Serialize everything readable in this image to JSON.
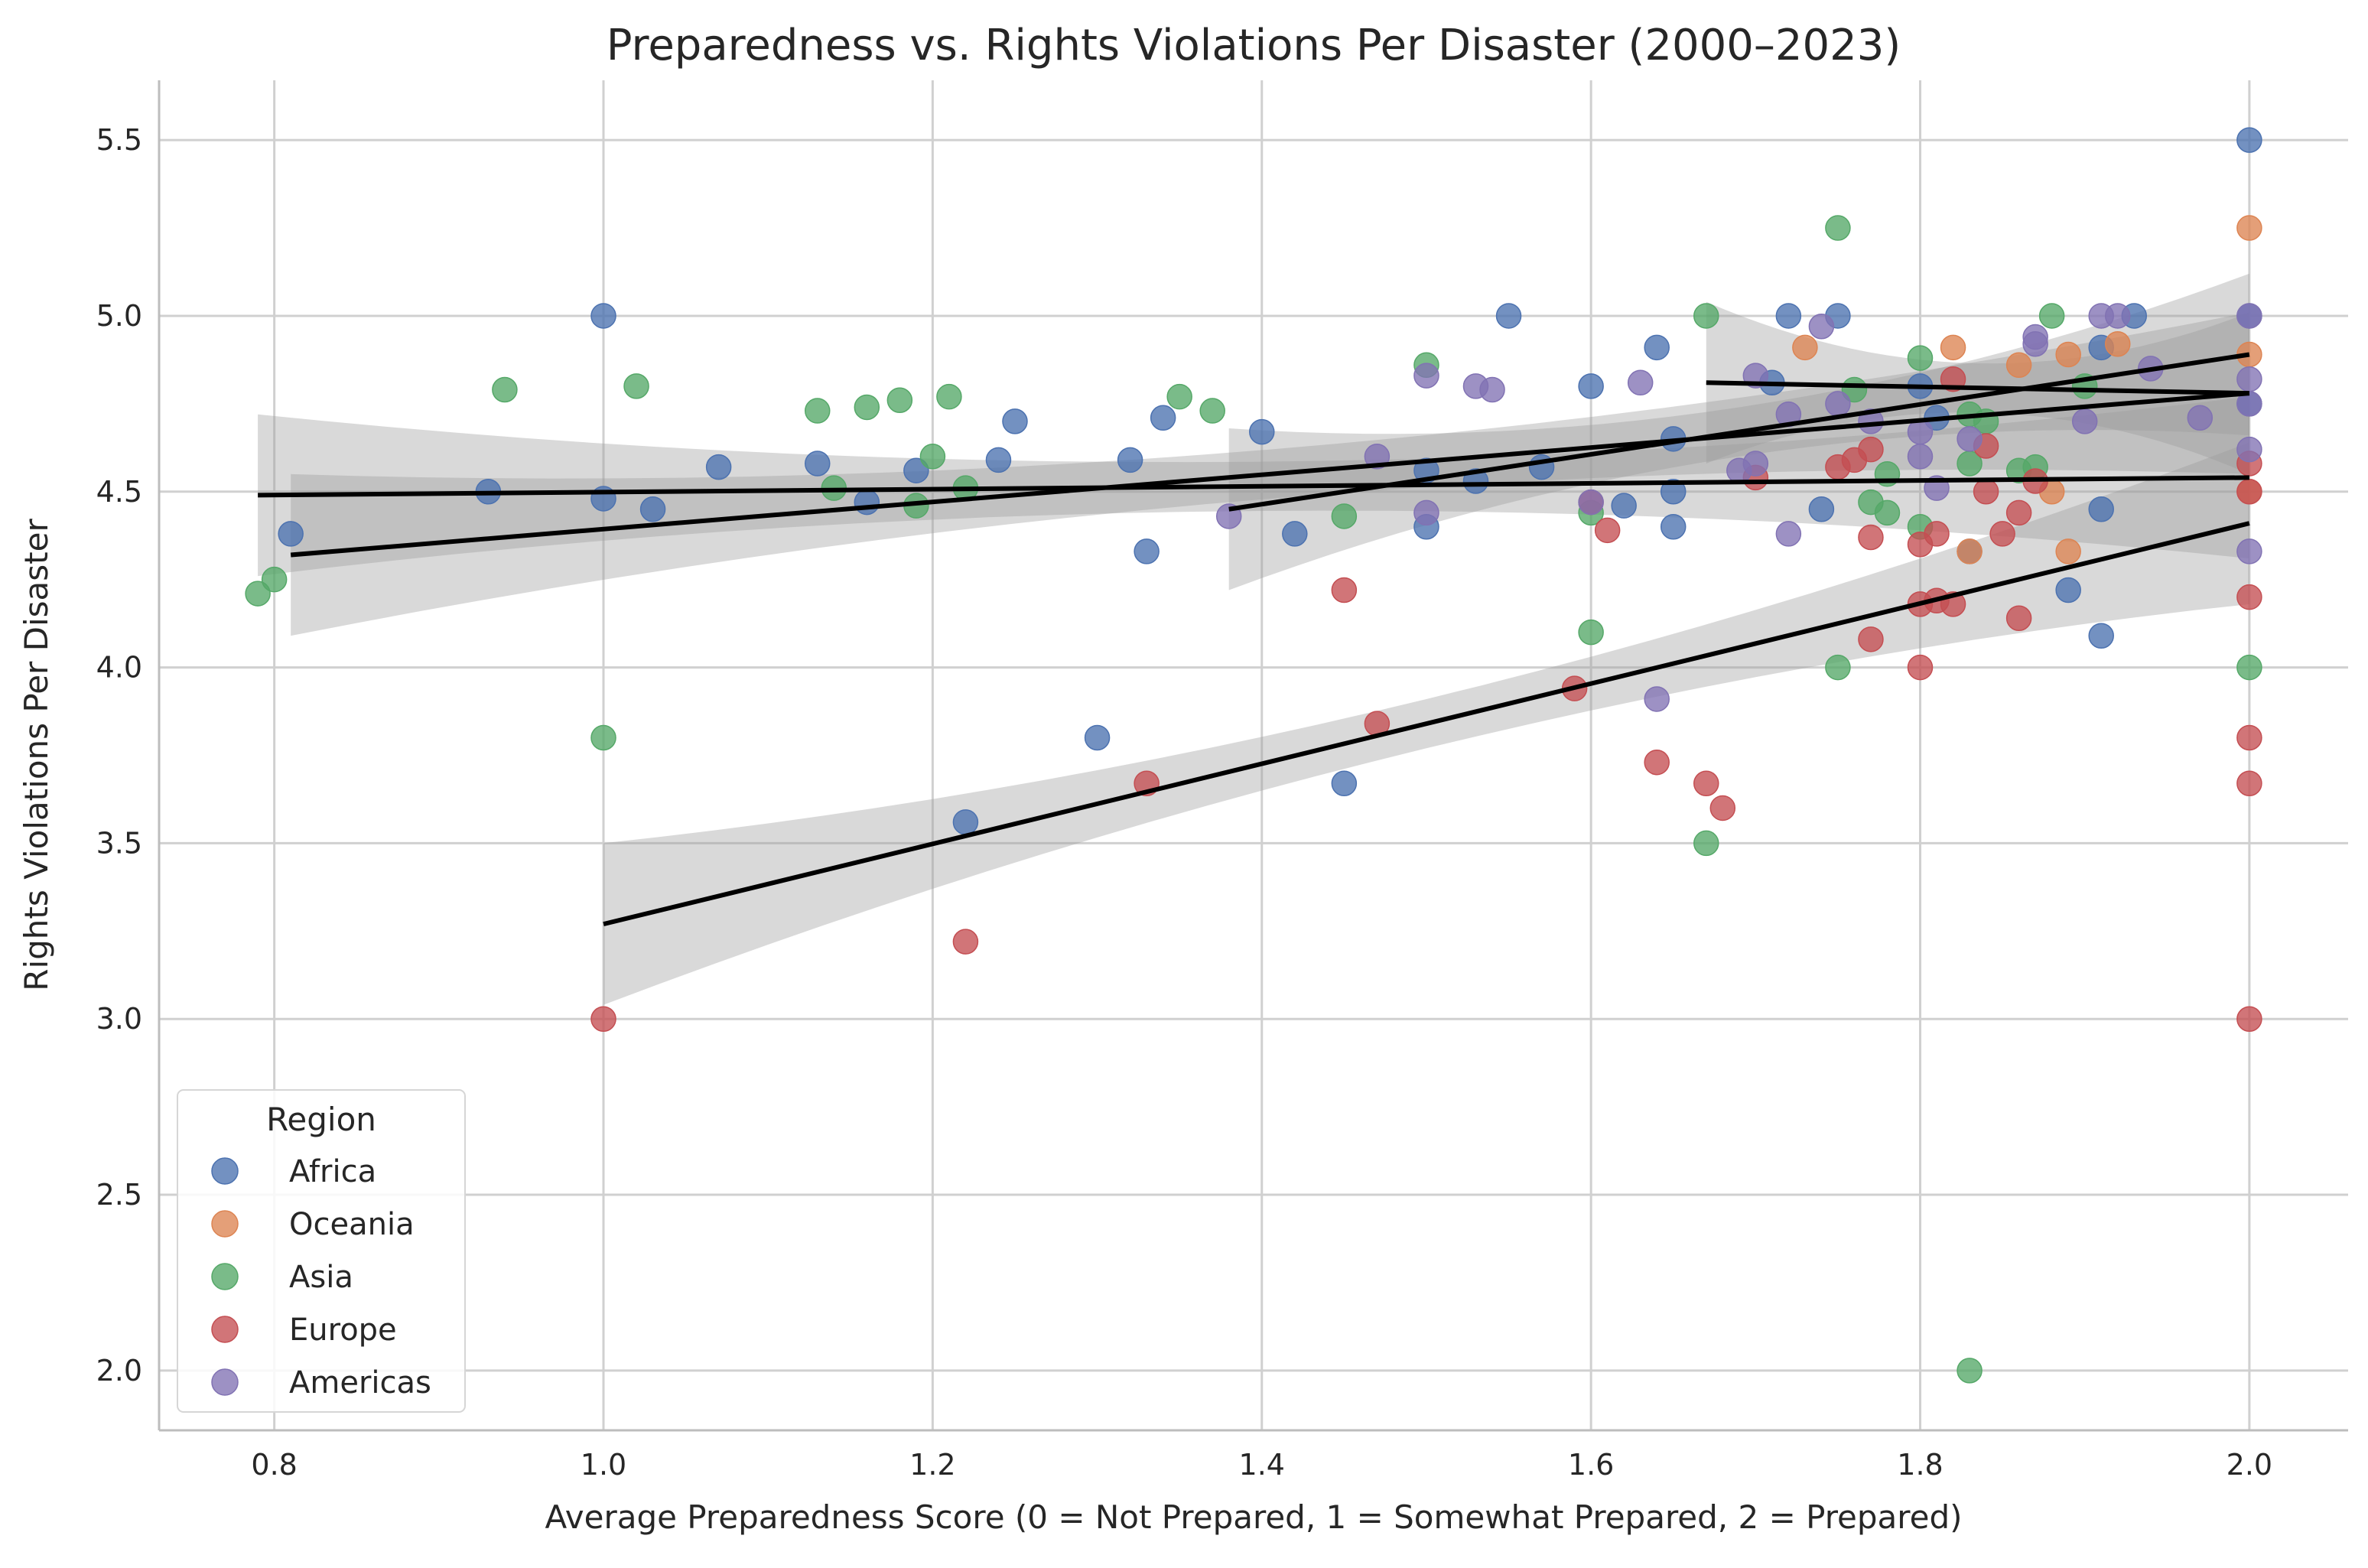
{
  "chart_data": {
    "type": "scatter",
    "title": "Preparedness vs. Rights Violations Per Disaster (2000–2023)",
    "xlabel": "Average Preparedness Score (0 = Not Prepared, 1 = Somewhat Prepared, 2 = Prepared)",
    "ylabel": "Rights Violations Per Disaster",
    "xlim": [
      0.73,
      2.06
    ],
    "ylim": [
      1.83,
      5.67
    ],
    "xticks": [
      0.8,
      1.0,
      1.2,
      1.4,
      1.6,
      1.8,
      2.0
    ],
    "xtick_labels": [
      "0.8",
      "1.0",
      "1.2",
      "1.4",
      "1.6",
      "1.8",
      "2.0"
    ],
    "yticks": [
      2.0,
      2.5,
      3.0,
      3.5,
      4.0,
      4.5,
      5.0,
      5.5
    ],
    "ytick_labels": [
      "2.0",
      "2.5",
      "3.0",
      "3.5",
      "4.0",
      "4.5",
      "5.0",
      "5.5"
    ],
    "grid": true,
    "legend": {
      "title": "Region",
      "placement": "lower-left"
    },
    "series": [
      {
        "name": "Africa",
        "color": "#4c72b0",
        "points": [
          [
            1.0,
            5.0
          ],
          [
            1.0,
            4.48
          ],
          [
            0.81,
            4.38
          ],
          [
            0.93,
            4.5
          ],
          [
            1.03,
            4.45
          ],
          [
            1.07,
            4.57
          ],
          [
            1.13,
            4.58
          ],
          [
            1.16,
            4.47
          ],
          [
            1.19,
            4.56
          ],
          [
            1.24,
            4.59
          ],
          [
            1.25,
            4.7
          ],
          [
            1.32,
            4.59
          ],
          [
            1.34,
            4.71
          ],
          [
            1.33,
            4.33
          ],
          [
            1.4,
            4.67
          ],
          [
            1.42,
            4.38
          ],
          [
            1.45,
            3.67
          ],
          [
            1.5,
            4.56
          ],
          [
            1.5,
            4.4
          ],
          [
            1.53,
            4.53
          ],
          [
            1.55,
            5.0
          ],
          [
            1.57,
            4.57
          ],
          [
            1.6,
            4.8
          ],
          [
            1.62,
            4.46
          ],
          [
            1.64,
            4.91
          ],
          [
            1.65,
            4.65
          ],
          [
            1.65,
            4.5
          ],
          [
            1.65,
            4.4
          ],
          [
            1.3,
            3.8
          ],
          [
            1.22,
            3.56
          ],
          [
            1.71,
            4.81
          ],
          [
            1.72,
            5.0
          ],
          [
            1.74,
            4.45
          ],
          [
            1.75,
            5.0
          ],
          [
            1.8,
            4.8
          ],
          [
            1.81,
            4.71
          ],
          [
            1.83,
            4.33
          ],
          [
            1.89,
            4.22
          ],
          [
            1.91,
            4.91
          ],
          [
            1.91,
            4.45
          ],
          [
            1.91,
            4.09
          ],
          [
            1.93,
            5.0
          ],
          [
            2.0,
            5.5
          ],
          [
            2.0,
            5.0
          ],
          [
            2.0,
            4.75
          ]
        ],
        "trend": {
          "x": [
            0.81,
            2.0
          ],
          "y": [
            4.32,
            4.78
          ]
        }
      },
      {
        "name": "Oceania",
        "color": "#dd8452",
        "points": [
          [
            1.73,
            4.91
          ],
          [
            1.82,
            4.91
          ],
          [
            1.86,
            4.86
          ],
          [
            1.89,
            4.89
          ],
          [
            1.92,
            4.92
          ],
          [
            1.88,
            4.5
          ],
          [
            1.89,
            4.33
          ],
          [
            2.0,
            5.25
          ],
          [
            2.0,
            4.89
          ],
          [
            1.83,
            4.33
          ],
          [
            2.0,
            4.5
          ]
        ],
        "trend": {
          "x": [
            1.67,
            2.0
          ],
          "y": [
            4.81,
            4.78
          ]
        }
      },
      {
        "name": "Asia",
        "color": "#55a868",
        "points": [
          [
            0.79,
            4.21
          ],
          [
            0.8,
            4.25
          ],
          [
            0.94,
            4.79
          ],
          [
            1.02,
            4.8
          ],
          [
            1.0,
            3.8
          ],
          [
            1.13,
            4.73
          ],
          [
            1.14,
            4.51
          ],
          [
            1.16,
            4.74
          ],
          [
            1.18,
            4.76
          ],
          [
            1.2,
            4.6
          ],
          [
            1.19,
            4.46
          ],
          [
            1.21,
            4.77
          ],
          [
            1.22,
            4.51
          ],
          [
            1.35,
            4.77
          ],
          [
            1.37,
            4.73
          ],
          [
            1.45,
            4.43
          ],
          [
            1.5,
            4.86
          ],
          [
            1.6,
            4.44
          ],
          [
            1.6,
            4.1
          ],
          [
            1.67,
            5.0
          ],
          [
            1.67,
            3.5
          ],
          [
            1.75,
            5.25
          ],
          [
            1.75,
            4.0
          ],
          [
            1.76,
            4.79
          ],
          [
            1.77,
            4.47
          ],
          [
            1.78,
            4.55
          ],
          [
            1.78,
            4.44
          ],
          [
            1.8,
            4.88
          ],
          [
            1.8,
            4.4
          ],
          [
            1.83,
            4.72
          ],
          [
            1.83,
            4.58
          ],
          [
            1.84,
            4.7
          ],
          [
            1.86,
            4.56
          ],
          [
            1.87,
            4.57
          ],
          [
            1.88,
            5.0
          ],
          [
            1.9,
            4.8
          ],
          [
            1.83,
            2.0
          ],
          [
            2.0,
            4.0
          ]
        ],
        "trend": {
          "x": [
            0.79,
            2.0
          ],
          "y": [
            4.49,
            4.54
          ]
        }
      },
      {
        "name": "Europe",
        "color": "#c44e52",
        "points": [
          [
            1.0,
            3.0
          ],
          [
            1.22,
            3.22
          ],
          [
            1.33,
            3.67
          ],
          [
            1.45,
            4.22
          ],
          [
            1.47,
            3.84
          ],
          [
            1.59,
            3.94
          ],
          [
            1.6,
            4.47
          ],
          [
            1.61,
            4.39
          ],
          [
            1.64,
            3.73
          ],
          [
            1.67,
            3.67
          ],
          [
            1.68,
            3.6
          ],
          [
            1.7,
            4.54
          ],
          [
            1.75,
            4.57
          ],
          [
            1.76,
            4.59
          ],
          [
            1.77,
            4.62
          ],
          [
            1.77,
            4.37
          ],
          [
            1.77,
            4.08
          ],
          [
            1.8,
            4.35
          ],
          [
            1.8,
            4.18
          ],
          [
            1.8,
            4.0
          ],
          [
            1.81,
            4.38
          ],
          [
            1.81,
            4.19
          ],
          [
            1.82,
            4.82
          ],
          [
            1.82,
            4.18
          ],
          [
            1.84,
            4.5
          ],
          [
            1.84,
            4.63
          ],
          [
            1.85,
            4.38
          ],
          [
            1.86,
            4.44
          ],
          [
            1.86,
            4.14
          ],
          [
            1.87,
            4.53
          ],
          [
            2.0,
            4.58
          ],
          [
            2.0,
            4.5
          ],
          [
            2.0,
            4.2
          ],
          [
            2.0,
            3.8
          ],
          [
            2.0,
            3.67
          ],
          [
            2.0,
            3.0
          ]
        ],
        "trend": {
          "x": [
            1.0,
            2.0
          ],
          "y": [
            3.27,
            4.41
          ]
        }
      },
      {
        "name": "Americas",
        "color": "#8172b3",
        "points": [
          [
            1.38,
            4.43
          ],
          [
            1.47,
            4.6
          ],
          [
            1.5,
            4.83
          ],
          [
            1.5,
            4.44
          ],
          [
            1.53,
            4.8
          ],
          [
            1.54,
            4.79
          ],
          [
            1.6,
            4.47
          ],
          [
            1.63,
            4.81
          ],
          [
            1.64,
            3.91
          ],
          [
            1.69,
            4.56
          ],
          [
            1.7,
            4.83
          ],
          [
            1.7,
            4.58
          ],
          [
            1.72,
            4.72
          ],
          [
            1.72,
            4.38
          ],
          [
            1.74,
            4.97
          ],
          [
            1.75,
            4.75
          ],
          [
            1.77,
            4.7
          ],
          [
            1.8,
            4.67
          ],
          [
            1.8,
            4.6
          ],
          [
            1.81,
            4.51
          ],
          [
            1.83,
            4.65
          ],
          [
            1.87,
            4.94
          ],
          [
            1.87,
            4.92
          ],
          [
            1.9,
            4.7
          ],
          [
            1.91,
            5.0
          ],
          [
            1.92,
            5.0
          ],
          [
            1.94,
            4.85
          ],
          [
            1.97,
            4.71
          ],
          [
            2.0,
            5.0
          ],
          [
            2.0,
            4.82
          ],
          [
            2.0,
            4.75
          ],
          [
            2.0,
            4.62
          ],
          [
            2.0,
            4.33
          ]
        ],
        "trend": {
          "x": [
            1.38,
            2.0
          ],
          "y": [
            4.45,
            4.89
          ]
        }
      }
    ]
  }
}
